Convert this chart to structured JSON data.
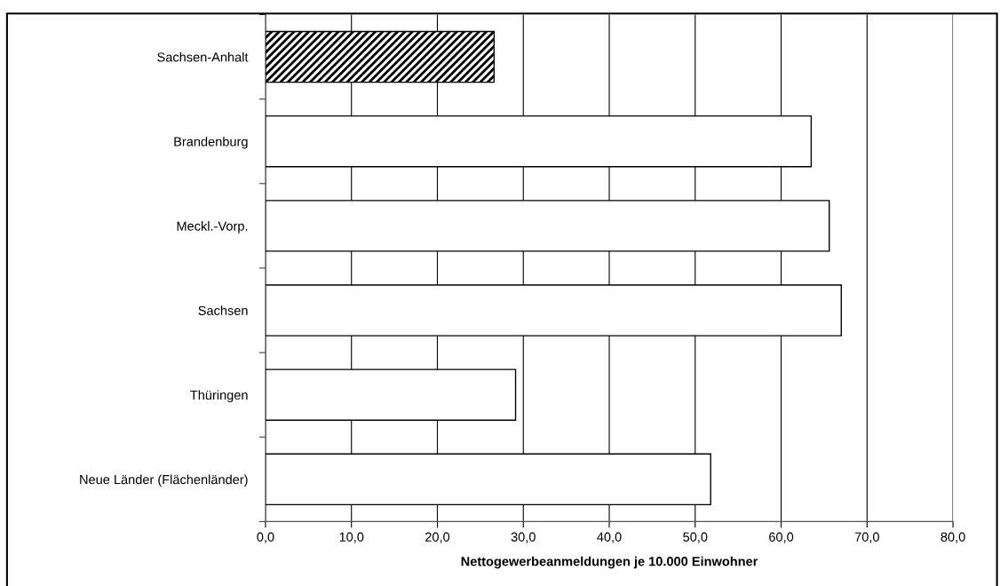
{
  "chart_data": {
    "type": "bar",
    "orientation": "horizontal",
    "categories": [
      "Sachsen-Anhalt",
      "Brandenburg",
      "Meckl.-Vorp.",
      "Sachsen",
      "Thüringen",
      "Neue Länder (Flächenländer)"
    ],
    "values": [
      26.6,
      63.5,
      65.6,
      67.0,
      29.1,
      51.8
    ],
    "colors": [
      "#000000",
      "#ffffff",
      "#ffffff",
      "#ffffff",
      "#ffffff",
      "#ffffff"
    ],
    "xlabel": "Nettogewerbeanmeldungen je 10.000 Einwohner",
    "xlim": [
      0,
      80
    ],
    "xticks": [
      {
        "value": 0,
        "label": "0,0"
      },
      {
        "value": 10,
        "label": "10,0"
      },
      {
        "value": 20,
        "label": "20,0"
      },
      {
        "value": 30,
        "label": "30,0"
      },
      {
        "value": 40,
        "label": "40,0"
      },
      {
        "value": 50,
        "label": "50,0"
      },
      {
        "value": 60,
        "label": "60,0"
      },
      {
        "value": 70,
        "label": "70,0"
      },
      {
        "value": 80,
        "label": "80,0"
      }
    ],
    "grid": "x"
  }
}
